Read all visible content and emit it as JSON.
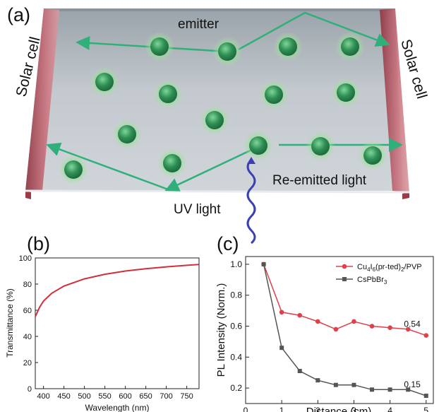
{
  "panel_a": {
    "label": "(a)",
    "emitter_label": "emitter",
    "solar_cell_left": "Solar cell",
    "solar_cell_right": "Solar cell",
    "reemitted_label": "Re-emitted light",
    "uv_label": "UV light",
    "colors": {
      "dot": "#3a9a5e",
      "arrow": "#2fb07a",
      "slab": "#b9c1c7",
      "cell": "#b85a66",
      "wave": "#3b3fb3"
    },
    "icons": [
      "quantum-dot-icon",
      "arrow-icon",
      "uv-wave-icon"
    ]
  },
  "panel_b": {
    "label": "(b)"
  },
  "panel_c": {
    "label": "(c)"
  },
  "chart_data": [
    {
      "type": "line",
      "xlabel": "Wavelength (nm)",
      "ylabel": "Transmittance (%)",
      "xlim": [
        380,
        780
      ],
      "ylim": [
        0,
        100
      ],
      "xticks": [
        400,
        450,
        500,
        550,
        600,
        650,
        700,
        750
      ],
      "yticks": [
        0,
        20,
        40,
        60,
        80,
        100
      ],
      "color": "#d0303a",
      "series": [
        {
          "x": [
            380,
            390,
            400,
            420,
            450,
            500,
            550,
            600,
            650,
            700,
            750,
            780
          ],
          "values": [
            55,
            62,
            67,
            73,
            78.5,
            84,
            87.5,
            90,
            91.8,
            93.2,
            94.4,
            95
          ]
        }
      ]
    },
    {
      "type": "line",
      "xlabel": "Distance (cm)",
      "ylabel": "PL Intensity (Norm.)",
      "xlim": [
        0,
        5.2
      ],
      "ylim": [
        0.1,
        1.05
      ],
      "xticks": [
        0,
        1,
        2,
        3,
        4,
        5
      ],
      "yticks": [
        0.2,
        0.4,
        0.6,
        0.8,
        1.0
      ],
      "ytick_labels": [
        "0.2",
        "0.4",
        "0.6",
        "0.8",
        "1.0"
      ],
      "legend_position": "top-right",
      "x": [
        0.5,
        1,
        1.5,
        2,
        2.5,
        3,
        3.5,
        4,
        4.5,
        5
      ],
      "series": [
        {
          "name_parts": [
            "Cu",
            "4",
            "I",
            "6",
            "(pr-ted)",
            "2",
            "/PVP"
          ],
          "color": "#e0404a",
          "marker": "circle",
          "values": [
            1.0,
            0.69,
            0.67,
            0.63,
            0.58,
            0.63,
            0.6,
            0.59,
            0.58,
            0.54
          ],
          "end_label": "0.54"
        },
        {
          "name_parts": [
            "CsPbBr",
            "3"
          ],
          "color": "#555555",
          "marker": "square",
          "values": [
            1.0,
            0.46,
            0.31,
            0.25,
            0.22,
            0.22,
            0.19,
            0.19,
            0.19,
            0.15
          ],
          "end_label": "0.15"
        }
      ]
    }
  ]
}
